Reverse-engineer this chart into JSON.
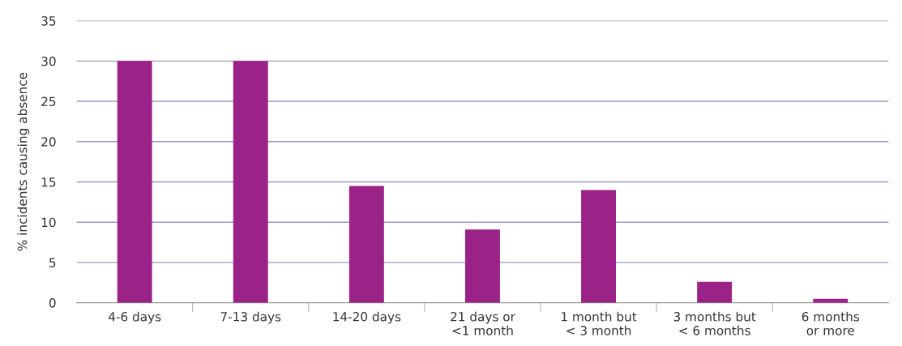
{
  "chart_data": {
    "type": "bar",
    "ylabel": "% incidents causing absence",
    "categories": [
      "4-6 days",
      "7-13 days",
      "14-20 days",
      "21 days or\n<1 month",
      "1 month but\n< 3 month",
      "3 months but\n< 6 months",
      "6 months\nor more"
    ],
    "values": [
      30,
      30,
      14.5,
      9.1,
      14,
      2.6,
      0.5
    ],
    "color": "#9b2387",
    "ylim": [
      0,
      35
    ],
    "yticks": [
      0,
      5,
      10,
      15,
      20,
      25,
      30,
      35
    ],
    "grid": "y"
  }
}
